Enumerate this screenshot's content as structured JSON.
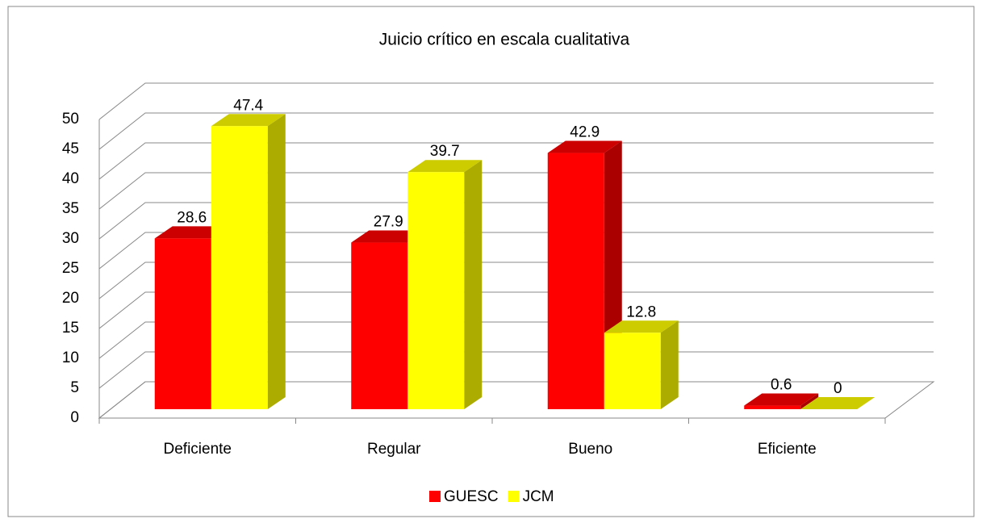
{
  "chart_data": {
    "type": "bar3d",
    "title": "Juicio crítico en escala cualitativa",
    "categories": [
      "Deficiente",
      "Regular",
      "Bueno",
      "Eficiente"
    ],
    "series": [
      {
        "name": "GUESC",
        "color": "#ff0000",
        "values": [
          28.6,
          27.9,
          42.9,
          0.6
        ]
      },
      {
        "name": "JCM",
        "color": "#ffff00",
        "values": [
          47.4,
          39.7,
          12.8,
          0
        ]
      }
    ],
    "ylim": [
      0,
      50
    ],
    "yticks": [
      0,
      5,
      10,
      15,
      20,
      25,
      30,
      35,
      40,
      45,
      50
    ],
    "grid": true,
    "legend": "bottom"
  }
}
